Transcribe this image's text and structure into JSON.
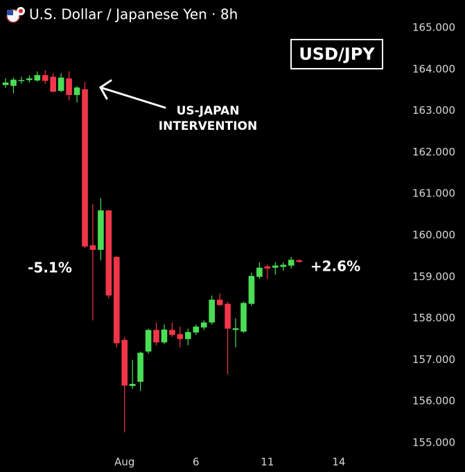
{
  "chart_data": {
    "type": "candlestick",
    "title": "U.S. Dollar / Japanese Yen · 8h",
    "badge": "USD/JPY",
    "annotations": {
      "intervention": [
        "US-JAPAN",
        "INTERVENTION"
      ],
      "drop": "-5.1%",
      "rise": "+2.6%"
    },
    "up_color": "#4ade55",
    "down_color": "#f2364a",
    "categories": [
      null,
      null,
      null,
      null,
      null,
      null,
      null,
      null,
      null,
      null,
      null,
      null,
      null,
      null,
      null,
      "Aug",
      null,
      null,
      null,
      null,
      null,
      null,
      null,
      null,
      "6",
      null,
      null,
      null,
      null,
      null,
      null,
      null,
      null,
      "11",
      null,
      null,
      null,
      null,
      null,
      null,
      null,
      null,
      "14"
    ],
    "open": [
      163.62,
      163.6,
      163.72,
      163.74,
      163.73,
      163.86,
      163.82,
      163.48,
      163.78,
      163.38,
      163.52,
      159.76,
      159.65,
      160.6,
      159.48,
      157.48,
      156.37,
      156.47,
      157.2,
      157.72,
      157.42,
      157.72,
      157.62,
      157.5,
      157.66,
      157.78,
      157.9,
      158.45,
      158.35,
      157.72,
      157.68,
      158.35,
      159.0,
      159.25,
      159.22,
      159.24,
      159.27,
      159.4,
      null,
      null,
      null,
      null,
      null
    ],
    "high": [
      163.78,
      163.8,
      163.82,
      163.85,
      163.95,
      163.98,
      163.9,
      163.9,
      163.95,
      163.6,
      163.7,
      160.75,
      160.9,
      160.6,
      159.5,
      157.55,
      157.0,
      157.2,
      157.75,
      157.9,
      157.85,
      157.9,
      157.8,
      157.75,
      157.85,
      157.95,
      158.55,
      158.6,
      158.4,
      158.0,
      158.4,
      159.1,
      159.35,
      159.3,
      159.35,
      159.35,
      159.48,
      159.42,
      null,
      null,
      null,
      null,
      null
    ],
    "low": [
      163.55,
      163.42,
      163.65,
      163.68,
      163.7,
      163.65,
      163.44,
      163.45,
      163.25,
      163.2,
      159.7,
      157.95,
      159.4,
      158.48,
      157.3,
      155.25,
      156.3,
      156.25,
      157.15,
      157.35,
      157.38,
      157.55,
      157.3,
      157.35,
      157.6,
      157.72,
      157.85,
      158.3,
      156.65,
      157.3,
      157.65,
      158.3,
      158.95,
      158.95,
      159.05,
      159.15,
      159.2,
      159.34,
      null,
      null,
      null,
      null,
      null
    ],
    "close": [
      163.68,
      163.75,
      163.74,
      163.78,
      163.86,
      163.72,
      163.46,
      163.8,
      163.38,
      163.56,
      159.73,
      159.65,
      160.6,
      158.55,
      157.4,
      156.38,
      156.42,
      157.17,
      157.72,
      157.42,
      157.73,
      157.6,
      157.5,
      157.67,
      157.8,
      157.9,
      158.45,
      158.32,
      157.75,
      157.76,
      158.37,
      159.02,
      159.22,
      159.2,
      159.27,
      159.29,
      159.41,
      159.36,
      null,
      null,
      null,
      null,
      null
    ],
    "ylim": [
      155,
      165
    ],
    "yticks": [
      {
        "value": 155,
        "label": "155.000"
      },
      {
        "value": 156,
        "label": "156.000"
      },
      {
        "value": 157,
        "label": "157.000"
      },
      {
        "value": 158,
        "label": "158.000"
      },
      {
        "value": 159,
        "label": "159.000"
      },
      {
        "value": 160,
        "label": "160.000"
      },
      {
        "value": 161,
        "label": "161.000"
      },
      {
        "value": 162,
        "label": "162.000"
      },
      {
        "value": 163,
        "label": "163.000"
      },
      {
        "value": 164,
        "label": "164.000"
      },
      {
        "value": 165,
        "label": "165.000"
      }
    ]
  }
}
